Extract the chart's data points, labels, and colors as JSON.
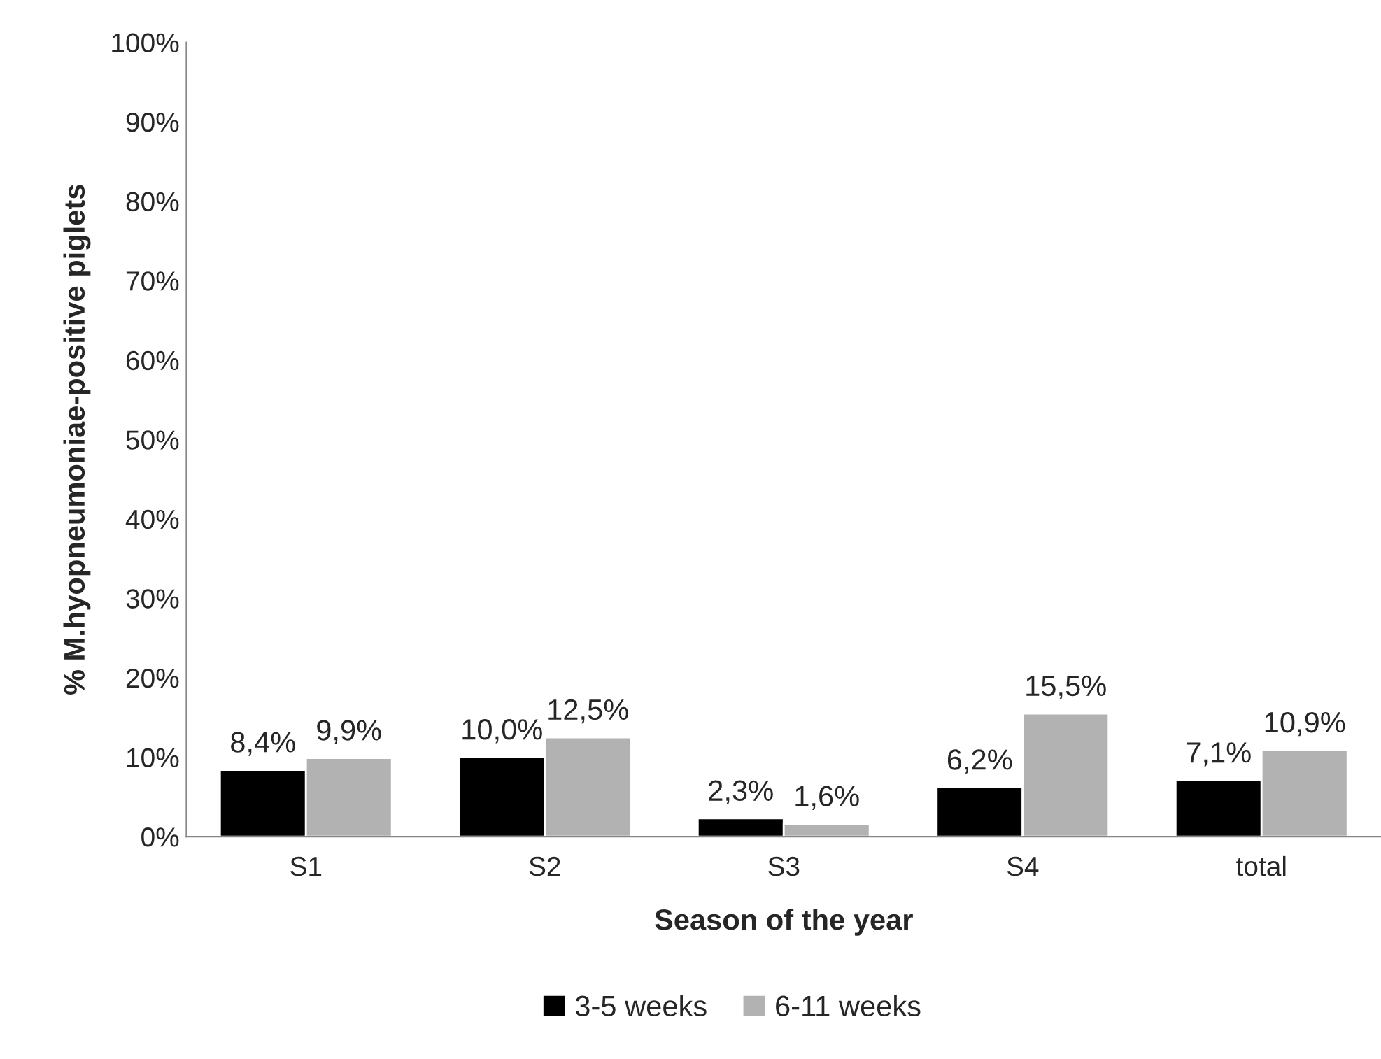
{
  "chart_data": {
    "type": "bar",
    "xlabel": "Season of the year",
    "ylabel": "% M.hyopneumoniae-positive piglets",
    "categories": [
      "S1",
      "S2",
      "S3",
      "S4",
      "total"
    ],
    "series": [
      {
        "name": "3-5 weeks",
        "color": "#000000",
        "values": [
          8.4,
          10.0,
          2.3,
          6.2,
          7.1
        ],
        "value_labels": [
          "8,4%",
          "10,0%",
          "2,3%",
          "6,2%",
          "7,1%"
        ]
      },
      {
        "name": "6-11 weeks",
        "color": "#b2b2b2",
        "values": [
          9.9,
          12.5,
          1.6,
          15.5,
          10.9
        ],
        "value_labels": [
          "9,9%",
          "12,5%",
          "1,6%",
          "15,5%",
          "10,9%"
        ]
      }
    ],
    "ylim": [
      0,
      100
    ],
    "yticks": [
      {
        "value": 0,
        "label": "0%"
      },
      {
        "value": 10,
        "label": "10%"
      },
      {
        "value": 20,
        "label": "20%"
      },
      {
        "value": 30,
        "label": "30%"
      },
      {
        "value": 40,
        "label": "40%"
      },
      {
        "value": 50,
        "label": "50%"
      },
      {
        "value": 60,
        "label": "60%"
      },
      {
        "value": 70,
        "label": "70%"
      },
      {
        "value": 80,
        "label": "80%"
      },
      {
        "value": 90,
        "label": "90%"
      },
      {
        "value": 100,
        "label": "100%"
      }
    ],
    "grid": false,
    "legend": "bottom"
  }
}
